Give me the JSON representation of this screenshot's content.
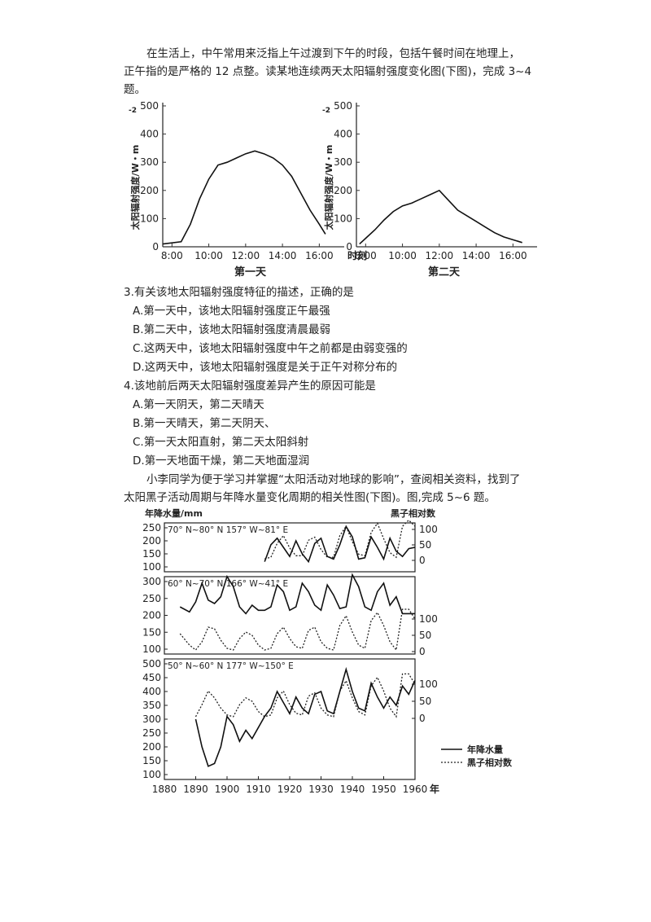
{
  "intro": {
    "line1": "在生活上，中午常用来泛指上午过渡到下午的时段，包括午餐时间在地理上，",
    "line2": "正午指的是严格的 12 点整。读某地连续两天太阳辐射强度变化图(下图)，完成 3~4",
    "line3": "题。"
  },
  "figure1": {
    "ylabel": "太阳辐射强度/W・m",
    "ylabel_units_sup": "-2",
    "xlabel": "时刻",
    "day1_caption": "第一天",
    "day2_caption": "第二天",
    "yticks": [
      "0",
      "100",
      "200",
      "300",
      "400",
      "500"
    ],
    "xticks": [
      "8:00",
      "10:00",
      "12:00",
      "14:00",
      "16:00"
    ]
  },
  "chart_data": [
    {
      "type": "line",
      "title": "第一天",
      "xlabel": "时刻",
      "ylabel": "太阳辐射强度/W・m⁻²",
      "ylim": [
        0,
        500
      ],
      "x": [
        "7:30",
        "8:30",
        "9:00",
        "9:30",
        "10:00",
        "10:30",
        "11:00",
        "11:30",
        "12:00",
        "12:30",
        "13:00",
        "13:30",
        "14:00",
        "14:30",
        "15:00",
        "15:30",
        "16:00",
        "16:20"
      ],
      "values": [
        10,
        18,
        80,
        170,
        240,
        290,
        300,
        315,
        330,
        340,
        330,
        315,
        290,
        250,
        190,
        130,
        80,
        45
      ]
    },
    {
      "type": "line",
      "title": "第二天",
      "xlabel": "时刻",
      "ylabel": "太阳辐射强度/W・m⁻²",
      "ylim": [
        0,
        500
      ],
      "x": [
        "7:40",
        "8:00",
        "8:30",
        "9:00",
        "9:30",
        "10:00",
        "10:30",
        "11:00",
        "11:30",
        "12:00",
        "12:30",
        "13:00",
        "13:30",
        "14:00",
        "14:30",
        "15:00",
        "15:30",
        "16:00",
        "16:30"
      ],
      "values": [
        10,
        30,
        60,
        95,
        125,
        145,
        155,
        170,
        185,
        200,
        165,
        130,
        110,
        90,
        70,
        50,
        35,
        25,
        15
      ]
    },
    {
      "type": "line",
      "title": "70°N~80°N 157°W~81°E",
      "series": [
        {
          "name": "年降水量",
          "x": [
            1912,
            1914,
            1916,
            1918,
            1920,
            1922,
            1924,
            1926,
            1928,
            1930,
            1932,
            1934,
            1936,
            1938,
            1940,
            1942,
            1944,
            1946,
            1948,
            1950,
            1952,
            1954,
            1956,
            1958,
            1960
          ],
          "values": [
            120,
            185,
            210,
            175,
            140,
            200,
            150,
            120,
            190,
            210,
            140,
            130,
            185,
            255,
            215,
            130,
            135,
            215,
            175,
            130,
            210,
            160,
            140,
            170,
            175
          ]
        },
        {
          "name": "黑子相对数",
          "x": [
            1912,
            1914,
            1916,
            1918,
            1920,
            1922,
            1924,
            1926,
            1928,
            1930,
            1932,
            1934,
            1936,
            1938,
            1940,
            1942,
            1944,
            1946,
            1948,
            1950,
            1952,
            1954,
            1956,
            1958,
            1960
          ],
          "values": [
            5,
            10,
            55,
            80,
            40,
            15,
            15,
            65,
            75,
            35,
            10,
            10,
            80,
            110,
            60,
            20,
            15,
            90,
            120,
            70,
            25,
            10,
            110,
            150,
            110
          ]
        }
      ]
    },
    {
      "type": "line",
      "title": "60°N~70°N 166°W~41°E",
      "series": [
        {
          "name": "年降水量",
          "x": [
            1885,
            1888,
            1890,
            1892,
            1894,
            1896,
            1898,
            1900,
            1902,
            1904,
            1906,
            1908,
            1910,
            1912,
            1914,
            1916,
            1918,
            1920,
            1922,
            1924,
            1926,
            1928,
            1930,
            1932,
            1934,
            1936,
            1938,
            1940,
            1942,
            1944,
            1946,
            1948,
            1950,
            1952,
            1954,
            1956,
            1958,
            1960
          ],
          "values": [
            225,
            210,
            240,
            295,
            245,
            235,
            255,
            315,
            285,
            225,
            205,
            230,
            215,
            215,
            225,
            290,
            270,
            215,
            225,
            295,
            270,
            230,
            215,
            290,
            260,
            220,
            225,
            320,
            285,
            225,
            215,
            270,
            295,
            230,
            255,
            205,
            205,
            205
          ]
        },
        {
          "name": "黑子相对数",
          "x": [
            1885,
            1888,
            1890,
            1892,
            1894,
            1896,
            1898,
            1900,
            1902,
            1904,
            1906,
            1908,
            1910,
            1912,
            1914,
            1916,
            1918,
            1920,
            1922,
            1924,
            1926,
            1928,
            1930,
            1932,
            1934,
            1936,
            1938,
            1940,
            1942,
            1944,
            1946,
            1948,
            1950,
            1952,
            1954,
            1956,
            1958,
            1960
          ],
          "values": [
            55,
            20,
            5,
            30,
            75,
            70,
            35,
            10,
            5,
            40,
            60,
            50,
            20,
            5,
            10,
            55,
            75,
            40,
            15,
            10,
            65,
            75,
            30,
            10,
            5,
            80,
            110,
            60,
            20,
            10,
            95,
            120,
            80,
            30,
            5,
            130,
            180,
            100
          ]
        }
      ]
    },
    {
      "type": "line",
      "title": "50°N~60°N 177°W~150°E",
      "series": [
        {
          "name": "年降水量",
          "x": [
            1890,
            1892,
            1894,
            1896,
            1898,
            1900,
            1902,
            1904,
            1906,
            1908,
            1910,
            1912,
            1914,
            1916,
            1918,
            1920,
            1922,
            1924,
            1926,
            1928,
            1930,
            1932,
            1934,
            1936,
            1938,
            1940,
            1942,
            1944,
            1946,
            1948,
            1950,
            1952,
            1954,
            1956,
            1958,
            1960
          ],
          "values": [
            300,
            200,
            130,
            140,
            200,
            310,
            280,
            220,
            260,
            230,
            270,
            310,
            340,
            400,
            360,
            320,
            380,
            340,
            320,
            390,
            400,
            330,
            320,
            400,
            480,
            400,
            340,
            330,
            430,
            380,
            340,
            380,
            350,
            420,
            390,
            440
          ]
        },
        {
          "name": "黑子相对数",
          "x": [
            1890,
            1892,
            1894,
            1896,
            1898,
            1900,
            1902,
            1904,
            1906,
            1908,
            1910,
            1912,
            1914,
            1916,
            1918,
            1920,
            1922,
            1924,
            1926,
            1928,
            1930,
            1932,
            1934,
            1936,
            1938,
            1940,
            1942,
            1944,
            1946,
            1948,
            1950,
            1952,
            1954,
            1956,
            1958,
            1960
          ],
          "values": [
            5,
            40,
            80,
            60,
            30,
            10,
            5,
            40,
            60,
            50,
            20,
            5,
            10,
            60,
            80,
            40,
            15,
            10,
            65,
            75,
            30,
            10,
            5,
            80,
            110,
            60,
            20,
            10,
            95,
            120,
            80,
            30,
            5,
            140,
            180,
            100
          ]
        }
      ]
    }
  ],
  "questions": {
    "q3": "3.有关该地太阳辐射强度特征的描述，正确的是",
    "q3a": "A.第一天中，该地太阳辐射强度正午最强",
    "q3b": "B.第二天中，该地太阳辐射强度清晨最弱",
    "q3c": "C.这两天中，该地太阳辐射强度中午之前都是由弱变强的",
    "q3d": "D.这两天中，该地太阳辐射强度是关于正午对称分布的",
    "q4": "4.该地前后两天太阳辐射强度差异产生的原因可能是",
    "q4a": "A.第一天阴天，第二天晴天",
    "q4b": "B.第一天晴天，第二天阴天、",
    "q4c": "C.第一天太阳直射，第二天太阳斜射",
    "q4d": "D.第一天地面干燥，第二天地面湿润"
  },
  "intro2": {
    "line1": "小李同学为便于学习并掌握“太阳活动对地球的影响”，查阅相关资料，找到了",
    "line2": "太阳黑子活动周期与年降水量变化周期的相关性图(下图)。图,完成 5~6 题。"
  },
  "figure2": {
    "left_label": "年降水量/mm",
    "right_label": "黑子相对数",
    "panel1_title": "70° N~80° N  157° W~81° E",
    "panel2_title": "60° N~70° N  166° W~41° E",
    "panel3_title": "50° N~60° N  177° W~150° E",
    "p1_left_ticks": [
      "250",
      "200",
      "150",
      "100"
    ],
    "p1_right_ticks": [
      "100",
      "50",
      "0"
    ],
    "p2_left_ticks": [
      "300",
      "250",
      "200",
      "150",
      "100"
    ],
    "p2_right_ticks": [
      "100",
      "50",
      "0"
    ],
    "p3_left_ticks": [
      "500",
      "450",
      "400",
      "350",
      "300",
      "250",
      "200",
      "150",
      "100"
    ],
    "p3_right_ticks": [
      "100",
      "50",
      "0"
    ],
    "xticks": [
      "1880",
      "1890",
      "1900",
      "1910",
      "1920",
      "1930",
      "1940",
      "1950",
      "1960"
    ],
    "xunit": "年",
    "legend_precip": "年降水量",
    "legend_sunspot": "黑子相对数"
  }
}
